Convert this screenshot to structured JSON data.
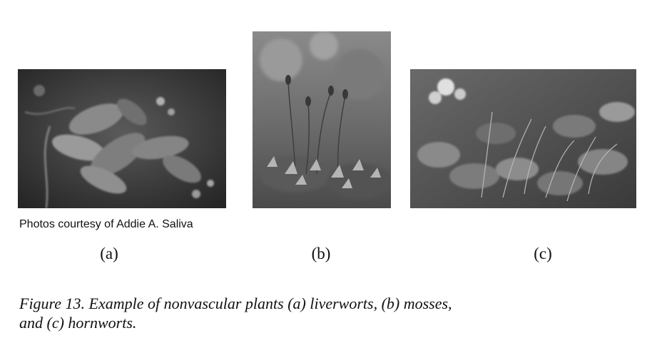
{
  "figure": {
    "photos": [
      {
        "id": "a",
        "subject": "liverworts",
        "label": "(a)"
      },
      {
        "id": "b",
        "subject": "mosses",
        "label": "(b)"
      },
      {
        "id": "c",
        "subject": "hornworts",
        "label": "(c)"
      }
    ],
    "credit": "Photos courtesy of Addie A. Saliva",
    "caption_line1": "Figure 13. Example of nonvascular plants (a) liverworts, (b) mosses,",
    "caption_line2": "and (c) hornworts."
  }
}
